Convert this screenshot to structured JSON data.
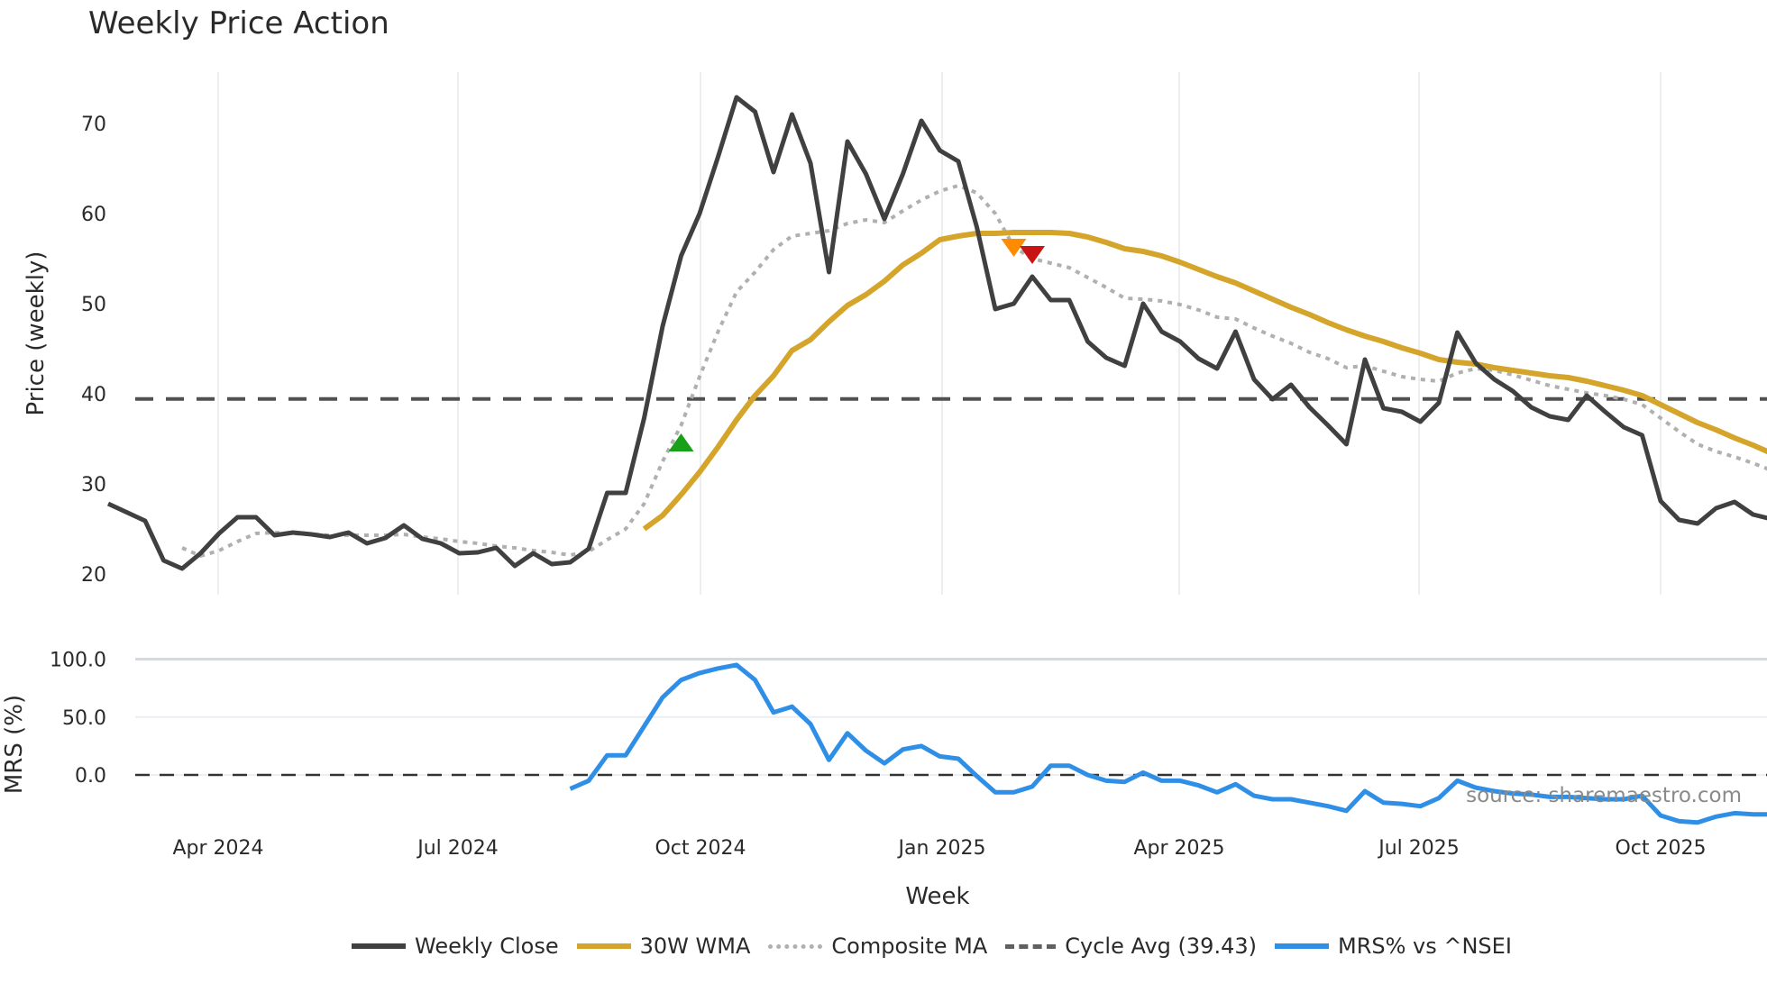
{
  "header": {
    "title": "Weekly Price Action"
  },
  "source_label": "source: sharemaestro.com",
  "legend": [
    {
      "key": "close",
      "label": "Weekly Close"
    },
    {
      "key": "wma",
      "label": "30W WMA"
    },
    {
      "key": "comp",
      "label": "Composite MA"
    },
    {
      "key": "cycle",
      "label": "Cycle Avg (39.43)"
    },
    {
      "key": "mrs",
      "label": "MRS% vs ^NSEI"
    }
  ],
  "colors": {
    "close": "#404040",
    "wma": "#d4a52a",
    "comp": "#b0b0b0",
    "cycle": "#505050",
    "mrs": "#2f8fe6",
    "buy_marker": "#18a018",
    "warn_marker": "#ff8c00",
    "sell_marker": "#c81414",
    "grid": "#e8ebf0"
  },
  "chart_data": [
    {
      "type": "line",
      "title": "Weekly Price Action",
      "xlabel": "Week",
      "ylabel": "Price (weekly)",
      "ylim": [
        18.5,
        75
      ],
      "yticks": [
        20,
        30,
        40,
        50,
        60,
        70
      ],
      "xticks": [
        "Apr 2024",
        "Jul 2024",
        "Oct 2024",
        "Jan 2025",
        "Apr 2025",
        "Jul 2025",
        "Oct 2025"
      ],
      "grid": true,
      "legend_position": "bottom",
      "x_start_index": 0,
      "series": [
        {
          "name": "Weekly Close",
          "start": 0,
          "values": [
            27.8,
            null,
            25.9,
            21.5,
            20.6,
            22.3,
            24.5,
            26.3,
            26.3,
            24.3,
            24.6,
            24.4,
            24.1,
            24.6,
            23.4,
            24.0,
            25.4,
            23.9,
            23.4,
            22.3,
            22.4,
            22.9,
            20.9,
            22.3,
            21.1,
            21.3,
            22.8,
            29.0,
            29.0,
            37.3,
            47.5,
            55.3,
            60.0,
            66.3,
            72.9,
            71.3,
            64.6,
            71.0,
            65.6,
            53.5,
            68.0,
            64.4,
            59.4,
            64.4,
            70.3,
            67.0,
            65.8,
            58.5,
            49.4,
            50.0,
            53.0,
            50.4,
            50.4,
            45.8,
            44.0,
            43.1,
            50.0,
            46.9,
            45.8,
            43.9,
            42.8,
            46.9,
            41.6,
            39.4,
            41.0,
            38.5,
            36.5,
            34.4,
            43.8,
            38.4,
            38.0,
            36.9,
            39.0,
            46.8,
            43.4,
            41.6,
            40.3,
            38.5,
            37.5,
            37.1,
            39.8,
            38.0,
            36.3,
            35.4,
            28.1,
            26.0,
            25.6,
            27.3,
            28.0,
            26.6,
            26.1
          ]
        },
        {
          "name": "30W WMA",
          "start": 29,
          "values": [
            25.0,
            26.5,
            28.8,
            31.3,
            34.1,
            37.1,
            39.8,
            42.0,
            44.8,
            46.0,
            48.0,
            49.8,
            51.0,
            52.5,
            54.3,
            55.6,
            57.1,
            57.5,
            57.8,
            57.8,
            57.9,
            57.9,
            57.9,
            57.8,
            57.4,
            56.8,
            56.1,
            55.8,
            55.3,
            54.6,
            53.8,
            53.0,
            52.3,
            51.4,
            50.5,
            49.6,
            48.8,
            47.9,
            47.1,
            46.4,
            45.8,
            45.1,
            44.5,
            43.8,
            43.5,
            43.3,
            42.9,
            42.6,
            42.3,
            42.0,
            41.8,
            41.4,
            40.9,
            40.4,
            39.8,
            38.8,
            37.8,
            36.8,
            36.0,
            35.1,
            34.3,
            33.4
          ]
        },
        {
          "name": "Composite MA",
          "start": 4,
          "values": [
            22.9,
            22.0,
            22.6,
            23.6,
            24.5,
            24.6,
            24.5,
            24.4,
            24.3,
            24.3,
            24.3,
            24.3,
            24.4,
            24.1,
            23.9,
            23.6,
            23.4,
            23.1,
            22.9,
            22.6,
            22.4,
            22.1,
            22.5,
            23.8,
            25.0,
            27.8,
            32.5,
            36.5,
            41.9,
            46.9,
            51.3,
            53.5,
            56.0,
            57.5,
            57.8,
            58.1,
            58.9,
            59.3,
            59.0,
            60.3,
            61.5,
            62.5,
            63.1,
            62.3,
            60.0,
            56.3,
            55.0,
            54.5,
            54.0,
            52.9,
            51.8,
            50.6,
            50.5,
            50.3,
            49.9,
            49.3,
            48.5,
            48.3,
            47.3,
            46.4,
            45.6,
            44.6,
            43.9,
            42.9,
            43.1,
            42.5,
            41.9,
            41.6,
            41.4,
            42.3,
            42.8,
            42.6,
            42.1,
            41.5,
            40.9,
            40.5,
            40.1,
            39.8,
            39.4,
            38.8,
            37.3,
            35.8,
            34.4,
            33.6,
            33.0,
            32.3,
            31.5
          ]
        },
        {
          "name": "Cycle Avg (39.43)",
          "constant": 39.43
        }
      ],
      "markers": [
        {
          "type": "buy",
          "shape": "triangle-up",
          "index": 31,
          "value": 34.5
        },
        {
          "type": "warn",
          "shape": "triangle-down",
          "index": 49,
          "value": 56.3
        },
        {
          "type": "sell",
          "shape": "triangle-down",
          "index": 50,
          "value": 55.5
        }
      ]
    },
    {
      "type": "line",
      "ylabel": "MRS (%)",
      "ylim": [
        -45,
        105
      ],
      "yticks": [
        0.0,
        50.0,
        100.0
      ],
      "ytick_labels": [
        "0.0",
        "50.0",
        "100.0"
      ],
      "zero_line": "dashed",
      "series": [
        {
          "name": "MRS% vs ^NSEI",
          "start": 25,
          "values": [
            -12,
            -5,
            17,
            17,
            42,
            67,
            82,
            88,
            92,
            95,
            82,
            54,
            59,
            44,
            13,
            36,
            21,
            10,
            22,
            25,
            16,
            14,
            -1,
            -15,
            -15,
            -10,
            8,
            8,
            0,
            -5,
            -6,
            2,
            -5,
            -5,
            -9,
            -15,
            -8,
            -18,
            -21,
            -21,
            -24,
            -27,
            -31,
            -14,
            -24,
            -25,
            -27,
            -20,
            -5,
            -11,
            -14,
            -16,
            -17,
            -19,
            -19,
            -20,
            -21,
            -21,
            -18,
            -35,
            -40,
            -41,
            -36,
            -33,
            -34,
            -34
          ]
        }
      ]
    }
  ],
  "axes": {
    "price_ylabel": "Price (weekly)",
    "mrs_ylabel": "MRS (%)",
    "xlabel": "Week",
    "price_ticks": [
      "20",
      "30",
      "40",
      "50",
      "60",
      "70"
    ],
    "mrs_ticks": [
      "100.0",
      "50.0",
      "0.0"
    ],
    "x_ticks": [
      "Apr 2024",
      "Jul 2024",
      "Oct 2024",
      "Jan 2025",
      "Apr 2025",
      "Jul 2025",
      "Oct 2025"
    ]
  }
}
